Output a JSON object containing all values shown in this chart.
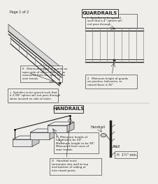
{
  "bg_color": "#f0eeea",
  "title_handrails": "HANDRAILS",
  "title_guardrails": "GUARDRAILS",
  "page_label": "Page 1 of 2",
  "annotation_G": "G   Handrail must\nterminate into wall at top\nand bottom of railing or\ninto newel posts.",
  "annotation_F": "F   Minimum height of\nhandrail to be 34\".\nMaximum height to be 38\".\nMeasured from nose of\nstair treads.",
  "annotation_H": "H  1½\" min.",
  "annotation_wall": "Wall",
  "annotation_handrail": "Handrail",
  "annotation_J": "J   Spindles to be spaced such that\na 4 3/8\" sphere will not pass through\nwhen located on side of stairs.",
  "annotation_K": "K   Minimum height of guards on\nopen side of stairs to be 34\" as\nmeasured from the nose of the\nstair treads.",
  "annotation_2": "2   Minimum height of guards\non porches, balconies, or\nraised floors is 36\".",
  "annotation_L": "L  Spindles to be spaced\nsuch that a 4\" sphere will\nnot pass through."
}
